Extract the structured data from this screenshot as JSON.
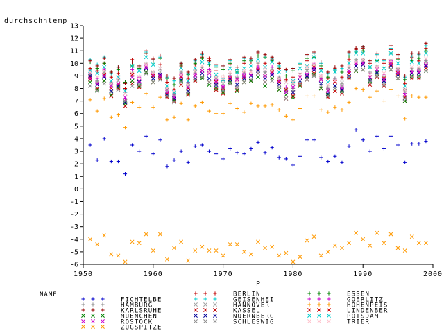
{
  "chart_data": {
    "type": "scatter",
    "title": "",
    "ylabel": "durchschntemp",
    "xlabel": "P",
    "xlim": [
      1950,
      2000
    ],
    "ylim": [
      -6,
      13
    ],
    "xticks": [
      "1950",
      "1960",
      "1970",
      "1980",
      "1990",
      "2000"
    ],
    "yticks": [
      "-6",
      "-5",
      "-4",
      "-3",
      "-2",
      "-1",
      "0",
      "1",
      "2",
      "3",
      "4",
      "5",
      "6",
      "7",
      "8",
      "9",
      "10",
      "11",
      "12",
      "13"
    ],
    "legend_title": "NAME",
    "legend_placement": "bottom",
    "x": [
      1951,
      1952,
      1953,
      1954,
      1955,
      1956,
      1957,
      1958,
      1959,
      1960,
      1961,
      1962,
      1963,
      1964,
      1965,
      1966,
      1967,
      1968,
      1969,
      1970,
      1971,
      1972,
      1973,
      1974,
      1975,
      1976,
      1977,
      1978,
      1979,
      1980,
      1981,
      1982,
      1983,
      1984,
      1985,
      1986,
      1987,
      1988,
      1989,
      1990,
      1991,
      1992,
      1993,
      1994,
      1995,
      1996,
      1997,
      1998,
      1999
    ],
    "series": [
      {
        "name": "BERLIN",
        "marker": "+",
        "color": "#c00000",
        "values": [
          9.6,
          9.4,
          10.0,
          8.9,
          9.2,
          8.0,
          10.3,
          9.7,
          11.0,
          10.4,
          9.9,
          8.5,
          7.9,
          9.8,
          8.8,
          9.9,
          10.5,
          10.4,
          9.4,
          9.0,
          9.9,
          9.5,
          10.0,
          10.1,
          10.8,
          10.0,
          10.3,
          9.6,
          8.7,
          8.9,
          9.9,
          10.2,
          10.8,
          9.6,
          8.8,
          9.6,
          8.9,
          10.3,
          11.1,
          11.2,
          10.0,
          10.6,
          10.0,
          11.1,
          10.4,
          8.4,
          10.5,
          10.2,
          11.2
        ]
      },
      {
        "name": "ESSEN",
        "marker": "+",
        "color": "#008000",
        "values": [
          10.1,
          9.6,
          10.0,
          9.3,
          9.5,
          8.5,
          9.8,
          9.6,
          10.8,
          10.1,
          10.4,
          8.8,
          8.3,
          9.9,
          9.1,
          10.0,
          10.4,
          9.9,
          9.7,
          9.5,
          10.0,
          9.3,
          10.2,
          10.2,
          10.6,
          10.5,
          10.2,
          9.7,
          9.0,
          9.4,
          9.9,
          10.4,
          10.5,
          9.8,
          8.9,
          9.4,
          9.3,
          10.6,
          10.9,
          11.0,
          9.7,
          10.2,
          9.7,
          10.8,
          10.3,
          8.7,
          10.2,
          10.4,
          11.0
        ]
      },
      {
        "name": "FICHTELBE",
        "marker": "+",
        "color": "#0000cc",
        "values": [
          3.5,
          2.3,
          4.0,
          2.2,
          2.2,
          1.2,
          3.5,
          3.0,
          4.2,
          2.8,
          3.9,
          1.8,
          2.3,
          3.0,
          2.1,
          3.4,
          3.5,
          3.0,
          2.8,
          2.4,
          3.2,
          2.9,
          2.8,
          3.2,
          3.7,
          2.9,
          3.3,
          2.5,
          2.4,
          1.9,
          2.6,
          3.9,
          3.9,
          2.5,
          2.2,
          2.6,
          2.1,
          3.4,
          4.7,
          3.9,
          3.0,
          4.2,
          3.2,
          4.2,
          3.5,
          2.1,
          3.6,
          3.6,
          3.8
        ]
      },
      {
        "name": "GEISENHEI",
        "marker": "+",
        "color": "#00cccc",
        "values": [
          10.3,
          9.9,
          10.5,
          9.2,
          9.7,
          8.4,
          10.1,
          9.8,
          10.9,
          10.3,
          10.5,
          8.9,
          8.6,
          10.0,
          9.2,
          10.2,
          10.7,
          10.1,
          9.8,
          9.8,
          10.2,
          9.5,
          10.4,
          10.3,
          10.9,
          10.6,
          10.4,
          9.8,
          9.4,
          9.6,
          10.0,
          10.6,
          10.8,
          10.0,
          9.2,
          9.5,
          9.6,
          10.8,
          11.0,
          11.3,
          10.1,
          10.7,
          10.2,
          11.2,
          10.6,
          8.9,
          10.6,
          10.7,
          11.4
        ]
      },
      {
        "name": "GOERLITZ",
        "marker": "+",
        "color": "#cc00cc",
        "values": [
          9.2,
          8.8,
          9.5,
          8.4,
          8.7,
          7.2,
          9.5,
          8.9,
          9.9,
          9.3,
          9.1,
          7.9,
          7.5,
          9.2,
          8.5,
          9.2,
          9.7,
          9.5,
          8.8,
          8.2,
          9.0,
          9.0,
          9.2,
          9.4,
          9.8,
          9.3,
          9.7,
          8.8,
          8.1,
          8.0,
          9.2,
          9.2,
          10.0,
          9.0,
          8.0,
          8.8,
          8.2,
          9.3,
          10.0,
          10.1,
          9.2,
          9.7,
          9.1,
          10.2,
          9.5,
          7.6,
          9.4,
          9.5,
          10.2
        ]
      },
      {
        "name": "HAMBURG",
        "marker": "+",
        "color": "#8c8c8c",
        "values": [
          9.1,
          8.6,
          9.3,
          8.5,
          8.7,
          7.7,
          9.2,
          9.0,
          10.0,
          9.3,
          9.5,
          8.0,
          7.6,
          9.3,
          8.4,
          9.4,
          9.7,
          9.3,
          9.0,
          8.6,
          9.2,
          8.9,
          9.3,
          9.4,
          10.0,
          9.3,
          9.5,
          8.9,
          7.9,
          8.6,
          9.2,
          9.5,
          9.9,
          9.0,
          8.1,
          8.8,
          8.4,
          9.7,
          10.3,
          10.3,
          9.3,
          9.8,
          9.0,
          10.3,
          9.6,
          7.9,
          9.6,
          9.6,
          10.2
        ]
      },
      {
        "name": "HANNOVER",
        "marker": "x",
        "color": "#a0a0a0",
        "values": [
          9.0,
          8.5,
          9.3,
          8.3,
          8.6,
          7.6,
          9.1,
          8.9,
          9.9,
          9.2,
          9.3,
          7.8,
          7.4,
          9.1,
          8.2,
          9.3,
          9.6,
          9.2,
          8.8,
          8.4,
          9.1,
          8.8,
          9.2,
          9.3,
          9.9,
          9.2,
          9.4,
          8.7,
          7.8,
          8.4,
          9.1,
          9.4,
          9.8,
          8.8,
          7.9,
          8.6,
          8.2,
          9.6,
          10.2,
          10.2,
          9.1,
          9.7,
          8.9,
          10.2,
          9.5,
          7.7,
          9.5,
          9.5,
          10.1
        ]
      },
      {
        "name": "HOHENPEIS",
        "marker": "+",
        "color": "#ff9900",
        "values": [
          7.1,
          6.2,
          7.2,
          5.7,
          5.9,
          4.9,
          6.9,
          6.5,
          7.6,
          6.5,
          7.3,
          5.5,
          5.7,
          6.8,
          5.5,
          6.6,
          6.9,
          6.2,
          6.0,
          6.0,
          6.8,
          6.4,
          6.1,
          6.8,
          6.6,
          6.6,
          6.7,
          6.3,
          5.8,
          5.5,
          6.4,
          7.4,
          7.4,
          6.3,
          6.1,
          6.5,
          6.3,
          6.9,
          8.0,
          7.9,
          7.3,
          7.8,
          7.0,
          7.9,
          7.4,
          5.6,
          7.4,
          7.3,
          7.3
        ]
      },
      {
        "name": "KARLSRUHE",
        "marker": "+",
        "color": "#990000",
        "values": [
          10.2,
          9.8,
          10.4,
          9.3,
          9.7,
          8.4,
          10.1,
          9.8,
          10.8,
          10.3,
          10.6,
          9.0,
          8.8,
          10.0,
          9.3,
          10.3,
          10.8,
          10.2,
          9.9,
          9.8,
          10.3,
          9.7,
          10.5,
          10.4,
          10.9,
          10.7,
          10.5,
          10.0,
          9.5,
          9.6,
          10.1,
          10.7,
          10.9,
          10.1,
          9.3,
          9.7,
          9.8,
          10.9,
          11.2,
          11.3,
          10.2,
          10.8,
          10.3,
          11.4,
          10.7,
          9.0,
          10.8,
          10.8,
          11.6
        ]
      },
      {
        "name": "KASSEL",
        "marker": "x",
        "color": "#c00000",
        "values": [
          8.7,
          8.0,
          8.6,
          7.4,
          8.0,
          6.6,
          8.4,
          8.1,
          9.3,
          8.5,
          8.8,
          7.3,
          7.0,
          8.3,
          7.5,
          8.6,
          8.9,
          8.5,
          7.9,
          7.6,
          8.4,
          7.9,
          8.5,
          8.6,
          9.2,
          8.5,
          8.8,
          7.9,
          7.2,
          7.4,
          8.3,
          8.7,
          9.2,
          8.0,
          7.3,
          7.8,
          7.6,
          8.8,
          9.4,
          9.5,
          8.3,
          8.9,
          8.2,
          9.5,
          8.8,
          7.0,
          8.8,
          8.8,
          9.6
        ]
      },
      {
        "name": "LINDENBER",
        "marker": "x",
        "color": "#cc0000",
        "values": [
          8.9,
          8.4,
          9.1,
          8.0,
          8.3,
          7.0,
          9.1,
          8.5,
          9.6,
          9.0,
          8.9,
          7.6,
          7.2,
          8.9,
          8.0,
          9.0,
          9.4,
          9.3,
          8.5,
          8.0,
          8.8,
          8.7,
          8.9,
          9.1,
          9.5,
          9.0,
          9.3,
          8.5,
          7.9,
          7.7,
          8.9,
          8.9,
          9.7,
          8.7,
          7.8,
          8.5,
          7.9,
          9.2,
          9.8,
          9.9,
          8.9,
          9.5,
          8.8,
          9.9,
          9.2,
          7.3,
          9.2,
          9.3,
          9.9
        ]
      },
      {
        "name": "MUENCHEN",
        "marker": "x",
        "color": "#008000",
        "values": [
          8.5,
          7.9,
          8.6,
          7.5,
          8.1,
          6.8,
          8.6,
          8.2,
          9.3,
          8.5,
          9.0,
          7.4,
          7.1,
          8.6,
          7.6,
          8.7,
          8.8,
          8.3,
          8.0,
          7.7,
          8.5,
          7.8,
          8.5,
          8.6,
          8.9,
          8.2,
          8.8,
          7.9,
          7.5,
          7.3,
          8.2,
          8.9,
          9.1,
          8.0,
          7.5,
          8.0,
          7.8,
          8.9,
          9.4,
          9.5,
          8.6,
          9.2,
          8.6,
          9.5,
          8.8,
          7.0,
          9.0,
          9.0,
          9.4
        ]
      },
      {
        "name": "NUERNBERG",
        "marker": "x",
        "color": "#000099",
        "values": [
          9.0,
          8.3,
          8.9,
          7.8,
          8.2,
          6.9,
          8.9,
          8.5,
          9.6,
          8.8,
          9.1,
          7.5,
          7.2,
          8.7,
          7.8,
          8.8,
          9.2,
          8.8,
          8.3,
          7.9,
          8.7,
          8.3,
          8.8,
          9.0,
          9.4,
          8.8,
          9.1,
          8.3,
          7.7,
          7.7,
          8.6,
          9.0,
          9.5,
          8.4,
          7.6,
          8.2,
          7.9,
          9.0,
          9.8,
          9.9,
          8.7,
          9.3,
          8.6,
          9.8,
          9.1,
          7.2,
          9.2,
          9.2,
          9.8
        ]
      },
      {
        "name": "POTSDAM",
        "marker": "x",
        "color": "#00cccc",
        "values": [
          9.4,
          9.2,
          9.7,
          8.6,
          8.9,
          7.8,
          9.8,
          9.4,
          10.5,
          9.9,
          9.6,
          8.2,
          7.7,
          9.6,
          8.6,
          9.6,
          10.1,
          10.0,
          9.1,
          8.7,
          9.6,
          9.3,
          9.6,
          9.8,
          10.3,
          9.7,
          10.1,
          9.3,
          8.5,
          8.6,
          9.6,
          9.8,
          10.5,
          9.4,
          8.5,
          9.3,
          8.7,
          10.0,
          10.8,
          10.8,
          9.7,
          10.2,
          9.6,
          10.8,
          10.0,
          8.2,
          10.1,
          10.0,
          10.8
        ]
      },
      {
        "name": "ROSTOCK",
        "marker": "x",
        "color": "#cc00cc",
        "values": [
          8.8,
          8.4,
          9.0,
          8.2,
          8.4,
          7.3,
          8.9,
          8.6,
          9.7,
          9.1,
          9.0,
          7.7,
          7.3,
          9.0,
          8.1,
          9.0,
          9.4,
          9.2,
          8.6,
          8.1,
          8.9,
          8.7,
          9.0,
          9.1,
          9.6,
          9.0,
          9.2,
          8.6,
          7.7,
          8.1,
          8.9,
          9.1,
          9.6,
          8.7,
          7.8,
          8.6,
          8.0,
          9.4,
          10.0,
          10.0,
          8.9,
          9.5,
          8.7,
          10.0,
          9.3,
          7.5,
          9.3,
          9.3,
          9.9
        ]
      },
      {
        "name": "SCHLESWIG",
        "marker": "x",
        "color": "#8c8c8c",
        "values": [
          8.2,
          7.8,
          8.4,
          7.7,
          7.9,
          7.0,
          8.2,
          8.3,
          9.2,
          8.5,
          8.7,
          7.4,
          6.9,
          8.5,
          7.7,
          8.7,
          8.9,
          8.5,
          8.2,
          7.9,
          8.4,
          8.1,
          8.5,
          8.7,
          9.2,
          8.5,
          8.6,
          8.1,
          7.2,
          7.9,
          8.4,
          8.7,
          9.0,
          8.2,
          7.4,
          8.0,
          7.7,
          8.9,
          9.5,
          9.5,
          8.5,
          9.0,
          8.3,
          9.5,
          8.8,
          7.2,
          8.9,
          8.9,
          9.4
        ]
      },
      {
        "name": "TRIER",
        "marker": "x",
        "color": "#ffc0cb",
        "values": [
          9.3,
          8.9,
          9.4,
          8.4,
          8.8,
          7.6,
          9.2,
          8.9,
          9.9,
          9.3,
          9.6,
          8.0,
          7.8,
          9.1,
          8.3,
          9.4,
          9.8,
          9.3,
          8.9,
          8.8,
          9.3,
          8.6,
          9.4,
          9.3,
          9.9,
          9.6,
          9.4,
          8.8,
          8.5,
          8.5,
          9.1,
          9.7,
          9.9,
          9.0,
          8.3,
          8.6,
          8.7,
          9.8,
          10.1,
          10.3,
          9.1,
          9.7,
          9.2,
          10.2,
          9.6,
          7.9,
          9.7,
          9.7,
          10.4
        ]
      },
      {
        "name": "ZUGSPITZE",
        "marker": "x",
        "color": "#ff9900",
        "values": [
          -4.0,
          -4.4,
          -3.7,
          -5.2,
          -5.3,
          -5.8,
          -4.2,
          -4.3,
          -3.6,
          -4.9,
          -3.6,
          -5.6,
          -4.7,
          -4.2,
          -5.7,
          -4.9,
          -4.6,
          -4.9,
          -4.9,
          -5.3,
          -4.4,
          -4.4,
          -5.0,
          -5.2,
          -4.2,
          -4.7,
          -4.6,
          -5.3,
          -5.1,
          -5.8,
          -5.4,
          -4.1,
          -3.8,
          -5.3,
          -5.0,
          -4.5,
          -4.7,
          -4.3,
          -3.5,
          -4.0,
          -4.5,
          -3.5,
          -4.3,
          -3.6,
          -4.7,
          -4.9,
          -3.8,
          -4.3,
          -4.3
        ]
      }
    ]
  }
}
